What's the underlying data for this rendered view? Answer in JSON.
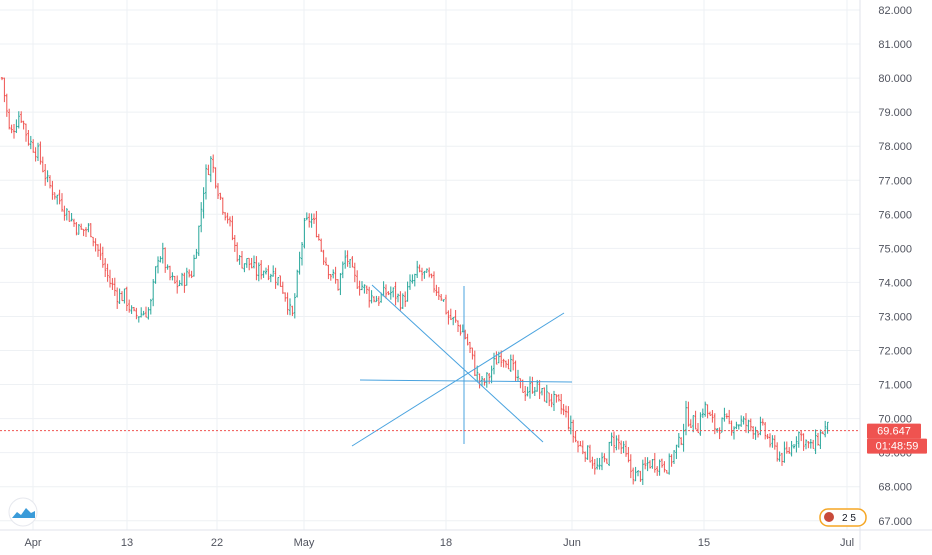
{
  "chart_data": {
    "type": "candlestick",
    "x_tick_labels": [
      "Apr",
      "13",
      "22",
      "May",
      "18",
      "Jun",
      "15",
      "Jul"
    ],
    "x_ticks": [
      "2020-04-01",
      "2020-04-13",
      "2020-04-22",
      "2020-05-01",
      "2020-05-18",
      "2020-06-01",
      "2020-06-15",
      "2020-07-01"
    ],
    "y_tick_labels": [
      "82.000",
      "81.000",
      "80.000",
      "79.000",
      "78.000",
      "77.000",
      "76.000",
      "75.000",
      "74.000",
      "73.000",
      "72.000",
      "71.000",
      "70.000",
      "69.000",
      "68.000",
      "67.000"
    ],
    "y_ticks": [
      82,
      81,
      80,
      79,
      78,
      77,
      76,
      75,
      74,
      73,
      72,
      71,
      70,
      69,
      68,
      67
    ],
    "ylim": [
      66.85,
      82.3
    ],
    "grid": true,
    "colors": {
      "up": "#26a69a",
      "down": "#ef5350",
      "drawing": "#4aa3df",
      "price_line": "#ef5350",
      "grid": "#eef1f4",
      "axis_text": "#50535e"
    },
    "current_price": {
      "value": 69.647,
      "label": "69.647"
    },
    "countdown": "01:48:59",
    "path_points": [
      [
        0,
        80.4
      ],
      [
        4,
        79.6
      ],
      [
        10,
        78.3
      ],
      [
        20,
        79.0
      ],
      [
        28,
        78.2
      ],
      [
        38,
        77.8
      ],
      [
        48,
        76.9
      ],
      [
        60,
        76.4
      ],
      [
        70,
        75.9
      ],
      [
        80,
        75.5
      ],
      [
        90,
        75.6
      ],
      [
        102,
        74.6
      ],
      [
        110,
        74.0
      ],
      [
        118,
        73.6
      ],
      [
        125,
        73.6
      ],
      [
        133,
        73.0
      ],
      [
        142,
        73.1
      ],
      [
        150,
        73.2
      ],
      [
        158,
        74.8
      ],
      [
        163,
        74.8
      ],
      [
        168,
        74.2
      ],
      [
        176,
        73.9
      ],
      [
        184,
        74.1
      ],
      [
        192,
        74.3
      ],
      [
        198,
        75.4
      ],
      [
        205,
        77.1
      ],
      [
        211,
        77.6
      ],
      [
        216,
        77.0
      ],
      [
        222,
        76.3
      ],
      [
        228,
        75.9
      ],
      [
        234,
        75.1
      ],
      [
        240,
        74.6
      ],
      [
        248,
        74.6
      ],
      [
        256,
        74.3
      ],
      [
        264,
        74.4
      ],
      [
        272,
        74.3
      ],
      [
        280,
        74.0
      ],
      [
        286,
        73.6
      ],
      [
        292,
        72.9
      ],
      [
        298,
        74.3
      ],
      [
        304,
        75.6
      ],
      [
        310,
        75.9
      ],
      [
        316,
        75.6
      ],
      [
        322,
        74.9
      ],
      [
        330,
        74.3
      ],
      [
        338,
        73.9
      ],
      [
        346,
        74.8
      ],
      [
        354,
        74.1
      ],
      [
        362,
        73.9
      ],
      [
        370,
        73.6
      ],
      [
        378,
        73.5
      ],
      [
        386,
        73.7
      ],
      [
        394,
        73.7
      ],
      [
        402,
        73.4
      ],
      [
        410,
        73.9
      ],
      [
        418,
        74.3
      ],
      [
        426,
        74.2
      ],
      [
        434,
        73.9
      ],
      [
        442,
        73.6
      ],
      [
        448,
        73.0
      ],
      [
        456,
        72.8
      ],
      [
        464,
        72.5
      ],
      [
        470,
        72.0
      ],
      [
        476,
        71.3
      ],
      [
        482,
        71.0
      ],
      [
        488,
        71.2
      ],
      [
        494,
        71.6
      ],
      [
        500,
        71.9
      ],
      [
        506,
        71.8
      ],
      [
        512,
        71.5
      ],
      [
        518,
        71.0
      ],
      [
        526,
        70.8
      ],
      [
        534,
        71.0
      ],
      [
        542,
        70.7
      ],
      [
        550,
        70.6
      ],
      [
        558,
        70.4
      ],
      [
        566,
        70.1
      ],
      [
        572,
        69.6
      ],
      [
        578,
        69.2
      ],
      [
        584,
        69.1
      ],
      [
        590,
        68.9
      ],
      [
        598,
        68.5
      ],
      [
        606,
        68.8
      ],
      [
        612,
        69.4
      ],
      [
        618,
        69.3
      ],
      [
        624,
        69.0
      ],
      [
        630,
        68.5
      ],
      [
        636,
        68.3
      ],
      [
        642,
        68.4
      ],
      [
        648,
        68.7
      ],
      [
        654,
        68.7
      ],
      [
        662,
        68.7
      ],
      [
        668,
        68.6
      ],
      [
        674,
        69.0
      ],
      [
        680,
        69.3
      ],
      [
        686,
        70.1
      ],
      [
        692,
        69.9
      ],
      [
        698,
        69.8
      ],
      [
        704,
        70.4
      ],
      [
        710,
        70.0
      ],
      [
        716,
        69.7
      ],
      [
        724,
        69.9
      ],
      [
        732,
        69.8
      ],
      [
        740,
        69.9
      ],
      [
        748,
        69.8
      ],
      [
        756,
        69.7
      ],
      [
        762,
        69.7
      ],
      [
        768,
        69.4
      ],
      [
        774,
        69.1
      ],
      [
        780,
        68.9
      ],
      [
        786,
        68.9
      ],
      [
        792,
        69.2
      ],
      [
        798,
        69.6
      ],
      [
        806,
        69.3
      ],
      [
        812,
        69.1
      ],
      [
        818,
        69.4
      ],
      [
        824,
        69.7
      ],
      [
        828,
        69.7
      ]
    ]
  },
  "ui": {
    "badge_text": "2 5"
  }
}
